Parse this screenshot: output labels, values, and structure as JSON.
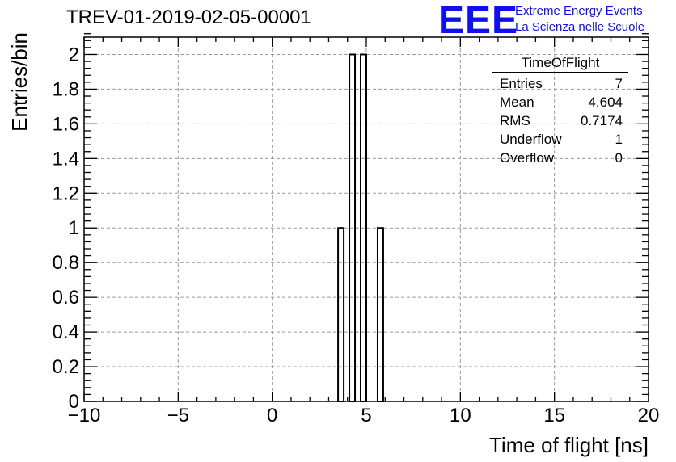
{
  "chart_data": {
    "type": "bar",
    "title": "TREV-01-2019-02-05-00001",
    "xlabel": "Time of flight [ns]",
    "ylabel": "Entries/bin",
    "xlim": [
      -10,
      20
    ],
    "ylim": [
      0,
      2.1
    ],
    "grid": true,
    "bin_width": 0.3,
    "bars": [
      {
        "x_low": 3.5,
        "x_high": 3.8,
        "value": 1
      },
      {
        "x_low": 4.1,
        "x_high": 4.4,
        "value": 2
      },
      {
        "x_low": 4.7,
        "x_high": 5.0,
        "value": 2
      },
      {
        "x_low": 5.6,
        "x_high": 5.9,
        "value": 1
      }
    ],
    "x_ticks": [
      {
        "value": -10,
        "label": "−10"
      },
      {
        "value": -5,
        "label": "−5"
      },
      {
        "value": 0,
        "label": "0"
      },
      {
        "value": 5,
        "label": "5"
      },
      {
        "value": 10,
        "label": "10"
      },
      {
        "value": 15,
        "label": "15"
      },
      {
        "value": 20,
        "label": "20"
      }
    ],
    "y_ticks": [
      {
        "value": 0,
        "label": "0"
      },
      {
        "value": 0.2,
        "label": "0.2"
      },
      {
        "value": 0.4,
        "label": "0.4"
      },
      {
        "value": 0.6,
        "label": "0.6"
      },
      {
        "value": 0.8,
        "label": "0.8"
      },
      {
        "value": 1,
        "label": "1"
      },
      {
        "value": 1.2,
        "label": "1.2"
      },
      {
        "value": 1.4,
        "label": "1.4"
      },
      {
        "value": 1.6,
        "label": "1.6"
      },
      {
        "value": 1.8,
        "label": "1.8"
      },
      {
        "value": 2,
        "label": "2"
      }
    ]
  },
  "logo": {
    "mark": "EEE",
    "line1": "Extreme Energy Events",
    "line2": "La Scienza nelle Scuole",
    "color": "#1010ee"
  },
  "stats": {
    "name": "TimeOfFlight",
    "rows": [
      {
        "label": "Entries",
        "value": "7"
      },
      {
        "label": "Mean",
        "value": "4.604"
      },
      {
        "label": "RMS",
        "value": "0.7174"
      },
      {
        "label": "Underflow",
        "value": "1"
      },
      {
        "label": "Overflow",
        "value": "0"
      }
    ]
  }
}
